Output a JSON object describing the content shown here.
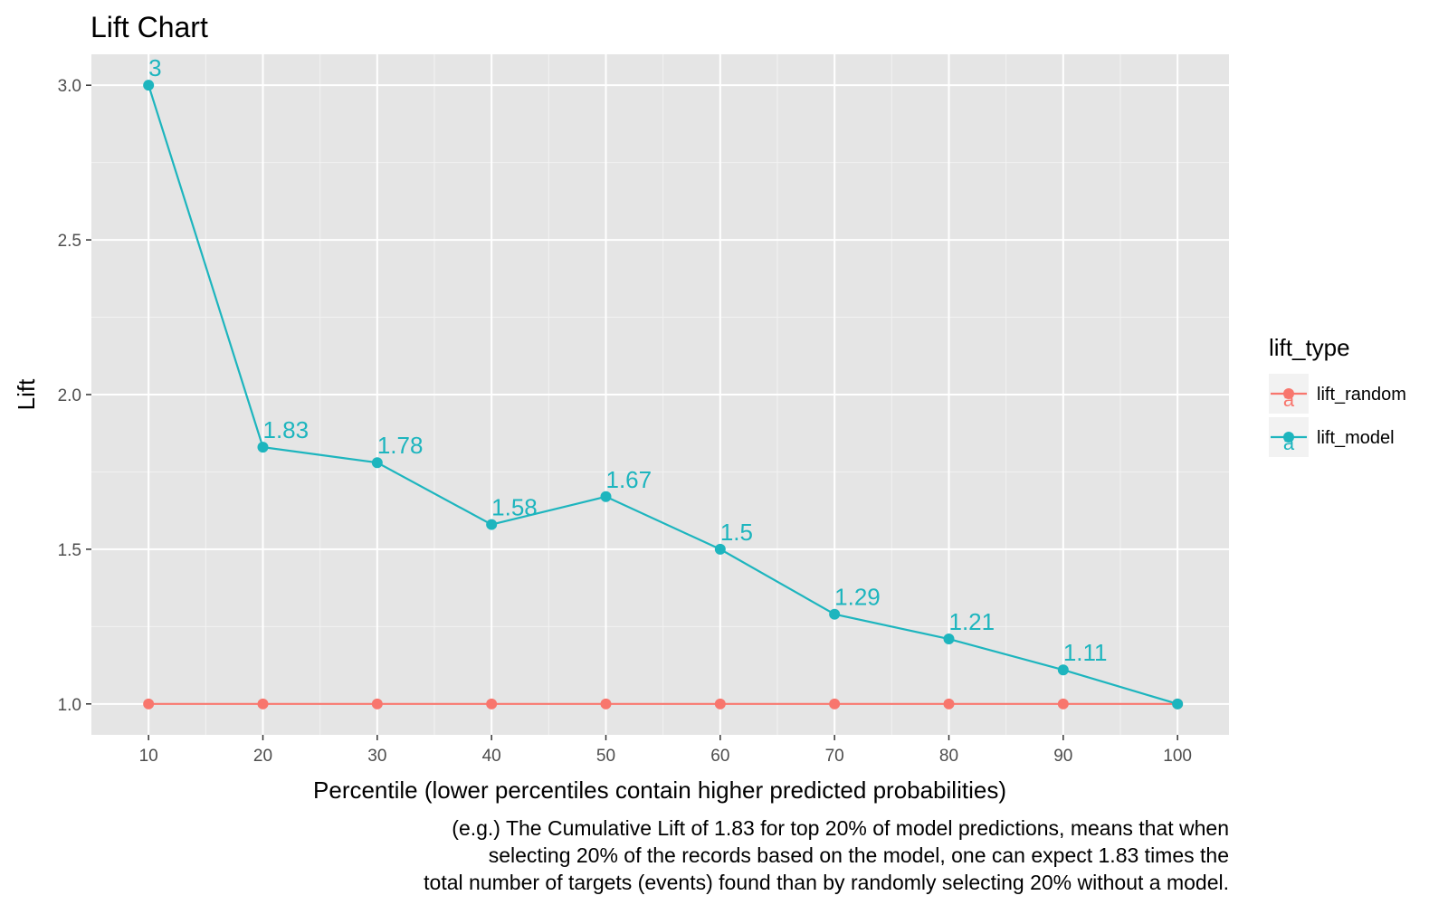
{
  "chart_data": {
    "type": "line",
    "title": "Lift Chart",
    "xlabel": "Percentile (lower percentiles contain higher predicted probabilities)",
    "ylabel": "Lift",
    "x": [
      10,
      20,
      30,
      40,
      50,
      60,
      70,
      80,
      90,
      100
    ],
    "x_ticks": [
      "10",
      "20",
      "30",
      "40",
      "50",
      "60",
      "70",
      "80",
      "90",
      "100"
    ],
    "xlim": [
      5,
      104.5
    ],
    "y_ticks": [
      "1.0",
      "1.5",
      "2.0",
      "2.5",
      "3.0"
    ],
    "ylim": [
      0.9,
      3.1
    ],
    "grid": true,
    "legend": {
      "title": "lift_type",
      "position": "right",
      "key_glyph_text": "a"
    },
    "series": [
      {
        "name": "lift_random",
        "color": "#F8766D",
        "values": [
          1,
          1,
          1,
          1,
          1,
          1,
          1,
          1,
          1,
          1
        ],
        "labels": []
      },
      {
        "name": "lift_model",
        "color": "#1DB5BE",
        "values": [
          3,
          1.83,
          1.78,
          1.58,
          1.67,
          1.5,
          1.29,
          1.21,
          1.11,
          1
        ],
        "labels": [
          "3",
          "1.83",
          "1.78",
          "1.58",
          "1.67",
          "1.5",
          "1.29",
          "1.21",
          "1.11",
          ""
        ]
      }
    ],
    "caption": [
      "(e.g.) The Cumulative Lift of 1.83 for top 20% of model predictions, means that when",
      "selecting 20% of the records based on the model, one can expect 1.83 times the",
      "total number of targets (events) found than by randomly selecting 20% without a model."
    ]
  }
}
